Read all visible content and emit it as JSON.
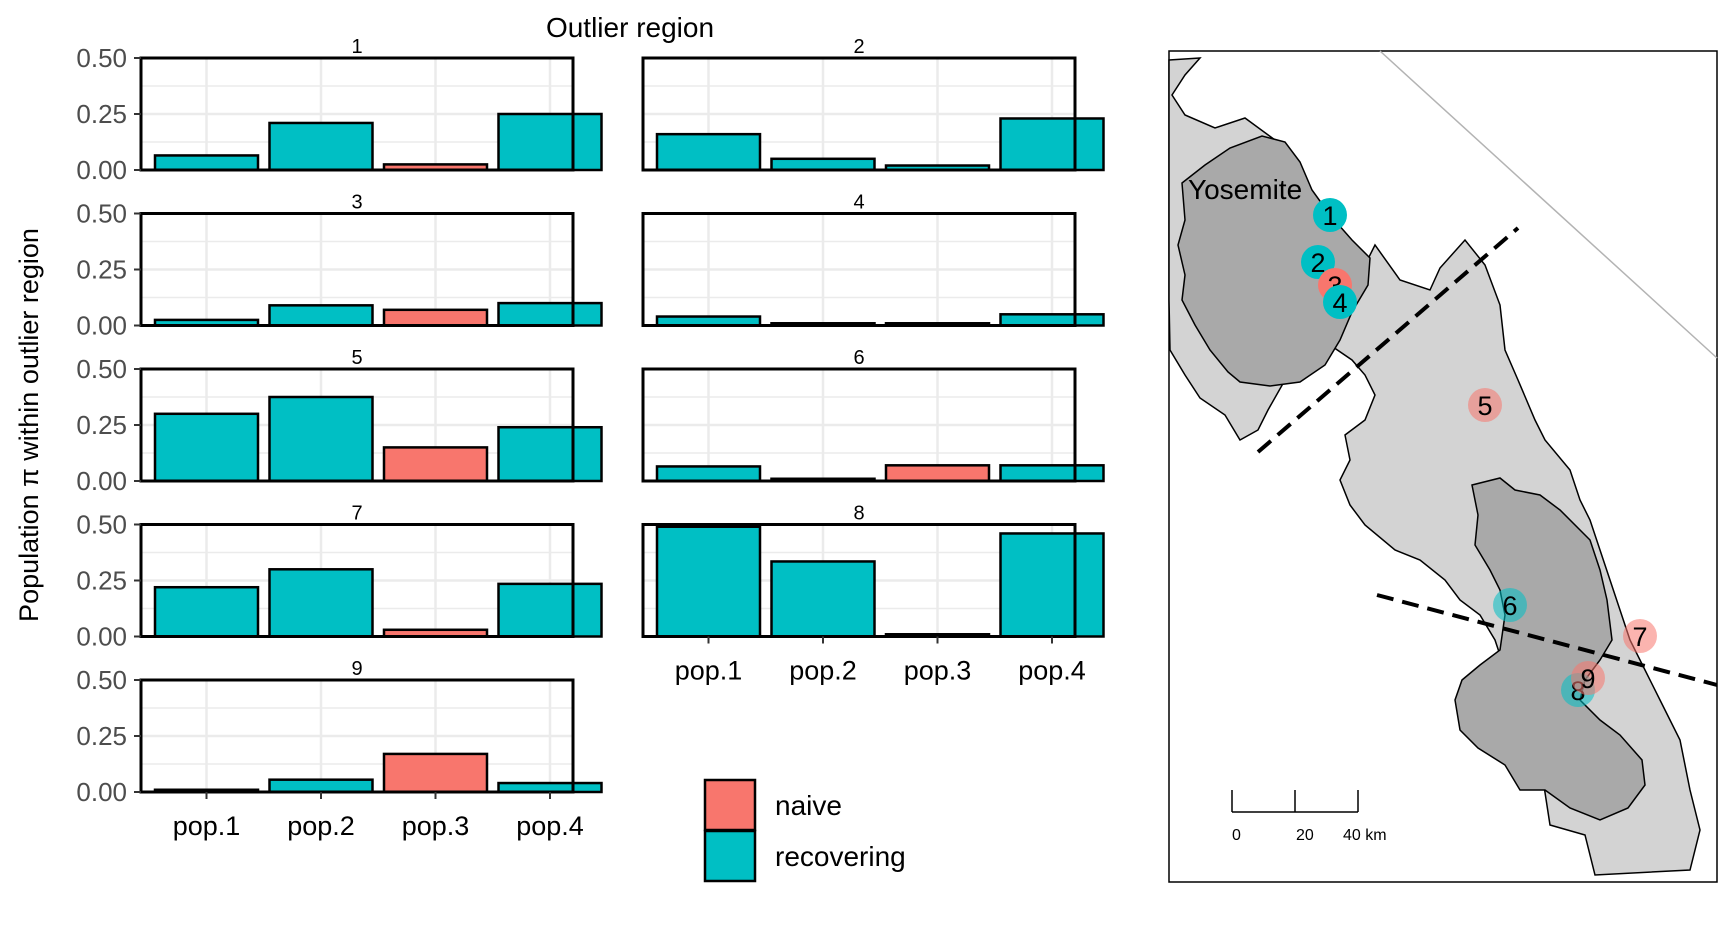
{
  "figure_title": "Outlier region",
  "y_axis_label": "Population π within outlier region",
  "legend": {
    "entries": [
      {
        "key": "naive",
        "label": "naive",
        "color": "#f8766d"
      },
      {
        "key": "recovering",
        "label": "recovering",
        "color": "#00bfc4"
      }
    ]
  },
  "chart_data": {
    "type": "bar",
    "facet_by": "outlier region",
    "categories": [
      "pop.1",
      "pop.2",
      "pop.3",
      "pop.4"
    ],
    "ylim": [
      0,
      0.5
    ],
    "yticks": [
      "0.00",
      "0.25",
      "0.50"
    ],
    "grid": true,
    "legend_placement": "bottom-right of panel grid",
    "colors": {
      "naive": "#f8766d",
      "recovering": "#00bfc4"
    },
    "panels": [
      {
        "title": "1",
        "values": [
          0.065,
          0.21,
          0.025,
          0.25
        ],
        "groups": [
          "recovering",
          "recovering",
          "naive",
          "recovering"
        ]
      },
      {
        "title": "2",
        "values": [
          0.16,
          0.05,
          0.02,
          0.23
        ],
        "groups": [
          "recovering",
          "recovering",
          "recovering",
          "recovering"
        ]
      },
      {
        "title": "3",
        "values": [
          0.025,
          0.09,
          0.07,
          0.1
        ],
        "groups": [
          "recovering",
          "recovering",
          "naive",
          "recovering"
        ]
      },
      {
        "title": "4",
        "values": [
          0.04,
          0.01,
          0.01,
          0.05
        ],
        "groups": [
          "recovering",
          "recovering",
          "recovering",
          "recovering"
        ]
      },
      {
        "title": "5",
        "values": [
          0.3,
          0.375,
          0.15,
          0.24
        ],
        "groups": [
          "recovering",
          "recovering",
          "naive",
          "recovering"
        ]
      },
      {
        "title": "6",
        "values": [
          0.065,
          0.01,
          0.07,
          0.07
        ],
        "groups": [
          "recovering",
          "recovering",
          "naive",
          "recovering"
        ]
      },
      {
        "title": "7",
        "values": [
          0.22,
          0.3,
          0.03,
          0.235
        ],
        "groups": [
          "recovering",
          "recovering",
          "naive",
          "recovering"
        ]
      },
      {
        "title": "8",
        "values": [
          0.49,
          0.335,
          0.01,
          0.46
        ],
        "groups": [
          "recovering",
          "recovering",
          "recovering",
          "recovering"
        ]
      },
      {
        "title": "9",
        "values": [
          0.01,
          0.055,
          0.17,
          0.04
        ],
        "groups": [
          "recovering",
          "recovering",
          "naive",
          "recovering"
        ]
      }
    ]
  },
  "map": {
    "park_label": "Yosemite",
    "sites": [
      {
        "label": "1",
        "group": "recovering"
      },
      {
        "label": "2",
        "group": "recovering"
      },
      {
        "label": "3",
        "group": "naive"
      },
      {
        "label": "4",
        "group": "recovering"
      },
      {
        "label": "5",
        "group": "naive"
      },
      {
        "label": "6",
        "group": "recovering"
      },
      {
        "label": "7",
        "group": "naive"
      },
      {
        "label": "8",
        "group": "recovering"
      },
      {
        "label": "9",
        "group": "naive"
      }
    ],
    "scale_bar": {
      "ticks": [
        "0",
        "20",
        "40 km"
      ]
    }
  }
}
